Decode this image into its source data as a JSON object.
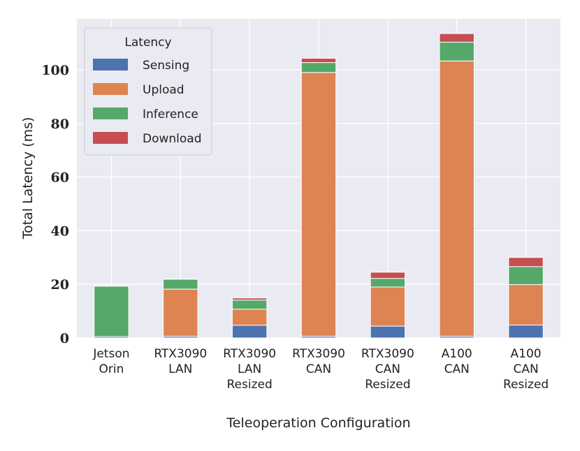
{
  "chart_data": {
    "type": "bar",
    "stacked": true,
    "title": "",
    "xlabel": "Teleoperation Configuration",
    "ylabel": "Total Latency (ms)",
    "ylim": [
      0,
      119
    ],
    "yticks": [
      0,
      20,
      40,
      60,
      80,
      100
    ],
    "grid": true,
    "legend": {
      "title": "Latency",
      "placement": "top-left"
    },
    "categories": [
      [
        "Jetson",
        "Orin"
      ],
      [
        "RTX3090",
        "LAN"
      ],
      [
        "RTX3090",
        "LAN",
        "Resized"
      ],
      [
        "RTX3090",
        "CAN"
      ],
      [
        "RTX3090",
        "CAN",
        "Resized"
      ],
      [
        "A100",
        "CAN"
      ],
      [
        "A100",
        "CAN",
        "Resized"
      ]
    ],
    "series": [
      {
        "name": "Sensing",
        "color": "#4c72b0",
        "values": [
          0.5,
          0.6,
          4.7,
          0.6,
          4.4,
          0.6,
          4.8
        ]
      },
      {
        "name": "Upload",
        "color": "#dd8452",
        "values": [
          0.0,
          17.6,
          6.0,
          98.4,
          14.6,
          102.7,
          15.1
        ]
      },
      {
        "name": "Inference",
        "color": "#55a868",
        "values": [
          18.8,
          3.7,
          3.4,
          3.7,
          3.2,
          7.0,
          6.7
        ]
      },
      {
        "name": "Download",
        "color": "#c44e52",
        "values": [
          0.1,
          0.1,
          0.8,
          1.6,
          2.3,
          3.2,
          3.4
        ]
      }
    ]
  }
}
